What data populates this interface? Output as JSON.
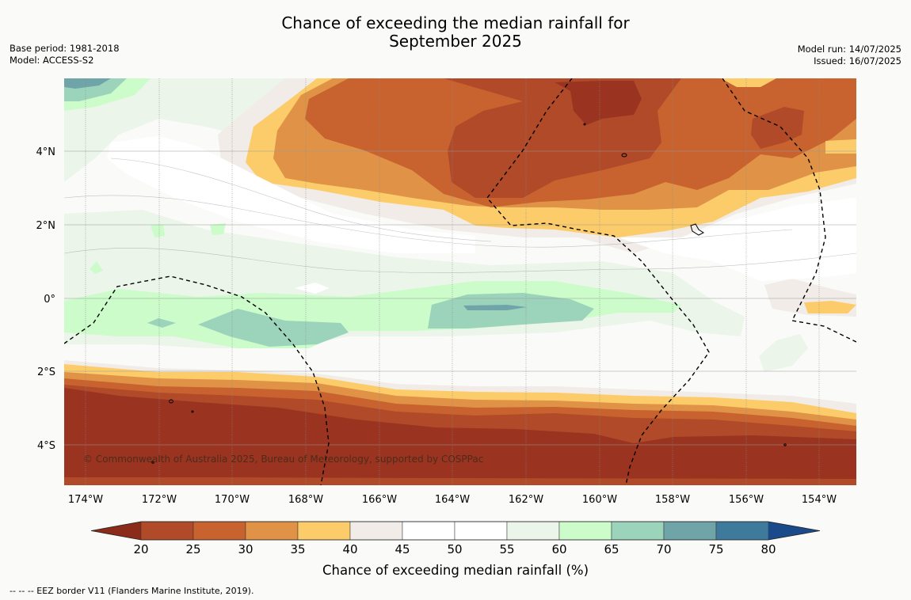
{
  "title_line1": "Chance of exceeding the median rainfall for",
  "title_line2": "September 2025",
  "base_period": "Base period: 1981-2018",
  "model": "Model: ACCESS-S2",
  "model_run": "Model run: 14/07/2025",
  "issued": "Issued: 16/07/2025",
  "copyright": "© Commonwealth of Australia 2025, Bureau of Meteorology, supported by COSPPac",
  "footer": "--  --  -- EEZ border V11 (Flanders Marine Institute, 2019).",
  "lat_labels": [
    "4°N",
    "2°N",
    "0°",
    "2°S",
    "4°S"
  ],
  "lon_labels": [
    "174°W",
    "172°W",
    "170°W",
    "168°W",
    "166°W",
    "164°W",
    "162°W",
    "160°W",
    "158°W",
    "156°W",
    "154°W"
  ],
  "colorbar": {
    "label": "Chance of exceeding median rainfall (%)",
    "ticks": [
      "20",
      "25",
      "30",
      "35",
      "40",
      "45",
      "50",
      "55",
      "60",
      "65",
      "70",
      "75",
      "80"
    ],
    "colors": [
      "#8b2b1a",
      "#b04a28",
      "#c8622f",
      "#e09346",
      "#fdcc6a",
      "#f1ece7",
      "#ffffff",
      "#ffffff",
      "#ebf5ea",
      "#cbfcca",
      "#9cd3bb",
      "#6fa5a9",
      "#3e7a9c",
      "#1a4a8a"
    ]
  },
  "map_colors": {
    "very_dry": "#9a3420",
    "dry": "#b04a28",
    "mod_dry": "#c8622f",
    "light_dry": "#e09346",
    "slight_dry": "#fdcc6a",
    "neutral_dry": "#f1ece7",
    "neutral": "#ffffff",
    "neutral_wet": "#ebf5ea",
    "slight_wet": "#cbfcca",
    "mod_wet": "#9cd3bb",
    "wet": "#6fa5a9"
  }
}
